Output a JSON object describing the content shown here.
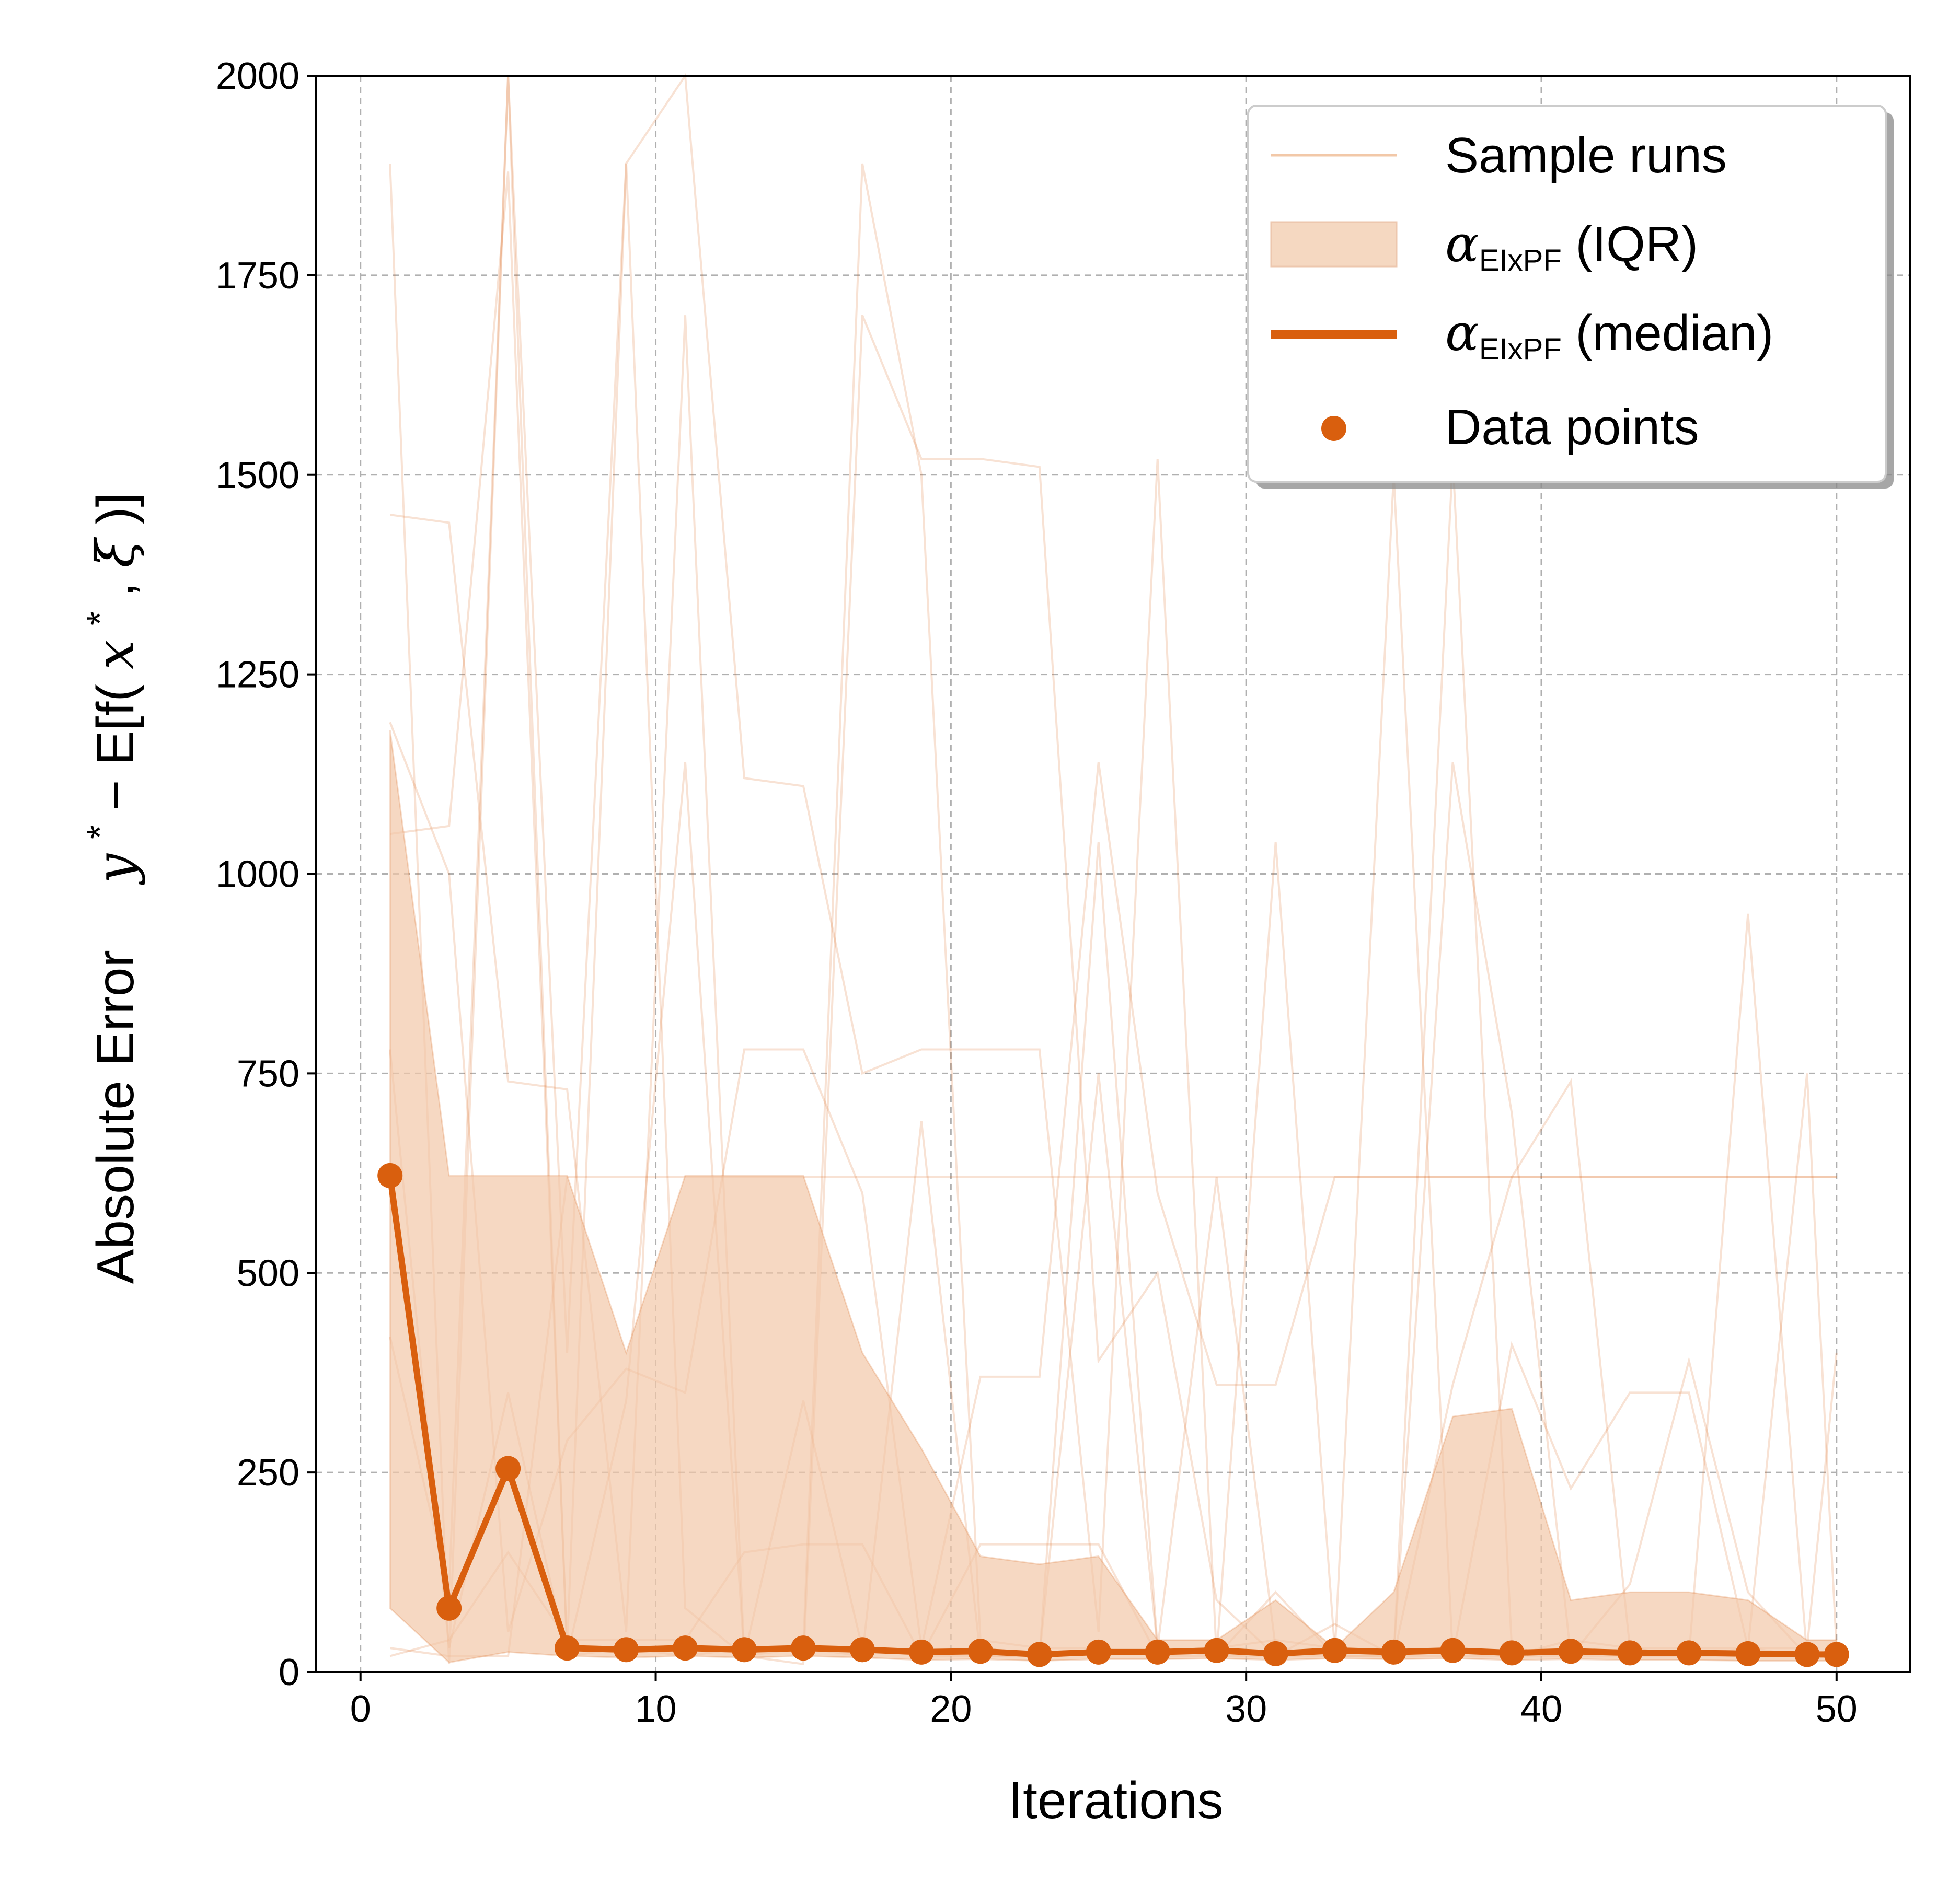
{
  "chart_data": {
    "type": "line",
    "xlabel": "Iterations",
    "ylabel": {
      "prefix": "Absolute Error",
      "math_y": "y",
      "math_star": "*",
      "math_minus": " − E[f(",
      "math_x": "x",
      "math_star2": "*",
      "math_comma": " , ",
      "math_xi": "ξ",
      "math_close": ")]"
    },
    "xlim": [
      -1.5,
      52.5
    ],
    "ylim": [
      0,
      2000
    ],
    "xticks": [
      0,
      10,
      20,
      30,
      40,
      50
    ],
    "yticks": [
      0,
      250,
      500,
      750,
      1000,
      1250,
      1500,
      1750,
      2000
    ],
    "grid": true,
    "legend_position": "top-right",
    "legend": {
      "sample_runs": "Sample runs",
      "iqr_symbol": "α",
      "iqr_sub": "EIxPF",
      "iqr_suffix": " (IQR)",
      "median_symbol": "α",
      "median_sub": "EIxPF",
      "median_suffix": " (median)",
      "points": "Data points"
    },
    "colors": {
      "main": "#d95f0e",
      "fill": "#f2c8a8",
      "grid": "#b0b0b0"
    },
    "x": [
      1,
      3,
      5,
      7,
      9,
      11,
      13,
      15,
      17,
      19,
      21,
      23,
      25,
      27,
      29,
      31,
      33,
      35,
      37,
      39,
      41,
      43,
      45,
      47,
      49,
      50
    ],
    "median": [
      622,
      80,
      255,
      30,
      28,
      30,
      28,
      30,
      28,
      25,
      26,
      22,
      25,
      25,
      27,
      23,
      27,
      25,
      27,
      24,
      26,
      24,
      24,
      23,
      22,
      22
    ],
    "iqr_low": [
      80,
      12,
      25,
      20,
      18,
      20,
      18,
      20,
      18,
      15,
      16,
      14,
      16,
      16,
      17,
      15,
      17,
      16,
      17,
      15,
      16,
      15,
      15,
      14,
      14,
      14
    ],
    "iqr_high": [
      1180,
      622,
      622,
      622,
      400,
      622,
      622,
      622,
      400,
      280,
      145,
      135,
      145,
      40,
      40,
      90,
      30,
      100,
      320,
      330,
      90,
      100,
      100,
      90,
      40,
      40
    ],
    "sample_runs": [
      [
        1890,
        10,
        2000,
        400,
        1890,
        80,
        20,
        30,
        1890,
        1500,
        40,
        30,
        30,
        20,
        30,
        40,
        30,
        20,
        30,
        20,
        40,
        30,
        20,
        30,
        20,
        20
      ],
      [
        1450,
        1440,
        740,
        730,
        50,
        1700,
        20,
        10,
        1700,
        1520,
        1520,
        1510,
        390,
        500,
        90,
        20,
        60,
        20,
        1520,
        30,
        20,
        20,
        20,
        20,
        20,
        20
      ],
      [
        1050,
        1060,
        1880,
        30,
        1890,
        2000,
        1120,
        1110,
        750,
        780,
        780,
        780,
        50,
        1520,
        20,
        1040,
        30,
        20,
        1140,
        700,
        20,
        30,
        20,
        950,
        20,
        20
      ],
      [
        1190,
        1000,
        50,
        290,
        380,
        350,
        780,
        780,
        600,
        30,
        370,
        370,
        1140,
        600,
        360,
        360,
        620,
        620,
        620,
        620,
        620,
        620,
        620,
        620,
        620,
        620
      ],
      [
        780,
        30,
        350,
        20,
        340,
        1140,
        20,
        340,
        30,
        20,
        20,
        20,
        750,
        30,
        620,
        30,
        20,
        20,
        360,
        620,
        740,
        30,
        30,
        30,
        750,
        30
      ],
      [
        420,
        100,
        2000,
        20,
        30,
        20,
        30,
        30,
        20,
        690,
        20,
        20,
        1040,
        30,
        20,
        20,
        20,
        1500,
        20,
        410,
        230,
        350,
        350,
        30,
        30,
        400
      ],
      [
        30,
        20,
        20,
        620,
        620,
        620,
        620,
        620,
        620,
        620,
        620,
        620,
        620,
        620,
        620,
        620,
        620,
        620,
        620,
        620,
        620,
        620,
        620,
        620,
        620,
        620
      ],
      [
        20,
        40,
        150,
        40,
        40,
        40,
        150,
        160,
        160,
        20,
        160,
        160,
        160,
        20,
        20,
        100,
        20,
        20,
        20,
        20,
        20,
        110,
        390,
        100,
        20,
        20
      ]
    ]
  }
}
